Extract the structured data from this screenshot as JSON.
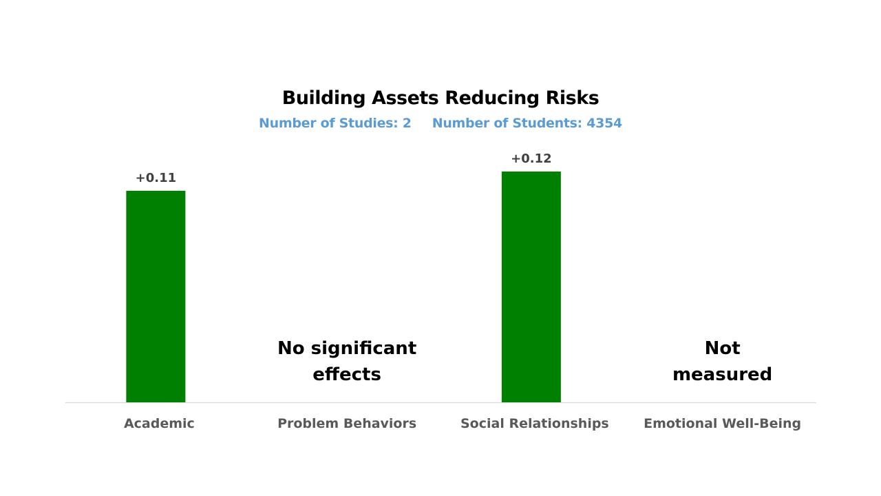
{
  "chart_data": {
    "type": "bar",
    "title": "Building Assets Reducing Risks",
    "subtitle": {
      "studies": "Number of Studies: 2",
      "students": "Number of Students: 4354"
    },
    "categories": [
      "Academic",
      "Problem Behaviors",
      "Social Relationships",
      "Emotional Well-Being"
    ],
    "values": [
      0.11,
      null,
      0.12,
      null
    ],
    "value_labels": [
      "+0.11",
      "",
      "+0.12",
      ""
    ],
    "notes": [
      "",
      "No significant\neffects",
      "",
      "Not\nmeasured"
    ],
    "ylim": [
      0,
      0.12
    ],
    "grid": false,
    "bar_color": "#008000",
    "axis_color": "#d9d9d9"
  }
}
